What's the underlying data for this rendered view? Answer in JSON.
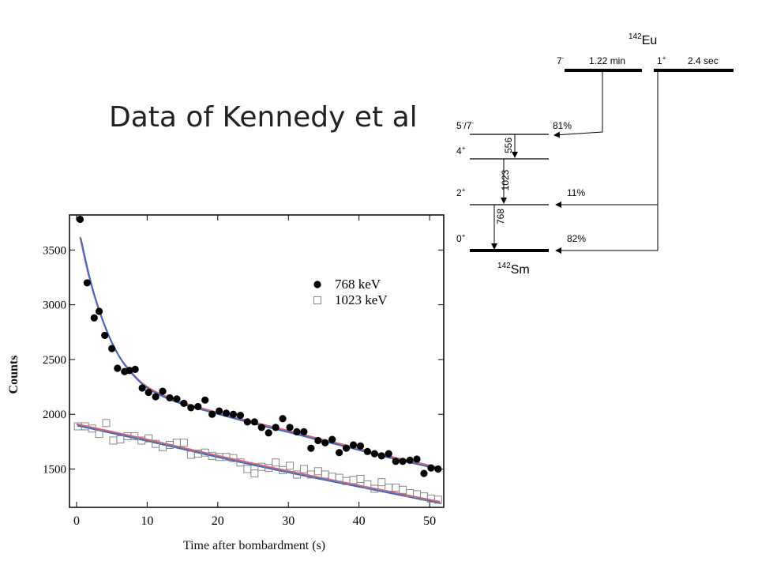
{
  "slide": {
    "title": "Data of Kennedy et al"
  },
  "chart_data": {
    "type": "scatter",
    "title": "",
    "xlabel": "Time after bombardment (s)",
    "ylabel": "Counts",
    "xlim": [
      -1,
      52
    ],
    "ylim": [
      1150,
      3820
    ],
    "x_ticks": [
      0,
      10,
      20,
      30,
      40,
      50
    ],
    "y_ticks": [
      1500,
      2000,
      2500,
      3000,
      3500
    ],
    "grid": false,
    "legend": "top-right",
    "series": [
      {
        "name": "768 keV",
        "marker": "filled-circle",
        "color": "#000000",
        "points": [
          [
            0.5,
            3780
          ],
          [
            1.5,
            3200
          ],
          [
            2.5,
            2880
          ],
          [
            3.2,
            2940
          ],
          [
            4.0,
            2720
          ],
          [
            5.0,
            2600
          ],
          [
            5.8,
            2420
          ],
          [
            6.8,
            2390
          ],
          [
            7.5,
            2400
          ],
          [
            8.3,
            2410
          ],
          [
            9.3,
            2240
          ],
          [
            10.2,
            2200
          ],
          [
            11.2,
            2160
          ],
          [
            12.2,
            2210
          ],
          [
            13.2,
            2150
          ],
          [
            14.2,
            2140
          ],
          [
            15.2,
            2100
          ],
          [
            16.2,
            2060
          ],
          [
            17.2,
            2070
          ],
          [
            18.2,
            2130
          ],
          [
            19.2,
            2000
          ],
          [
            20.2,
            2030
          ],
          [
            21.2,
            2010
          ],
          [
            22.2,
            2000
          ],
          [
            23.2,
            1990
          ],
          [
            24.2,
            1930
          ],
          [
            25.2,
            1930
          ],
          [
            26.2,
            1880
          ],
          [
            27.2,
            1830
          ],
          [
            28.2,
            1880
          ],
          [
            29.2,
            1960
          ],
          [
            30.2,
            1880
          ],
          [
            31.2,
            1840
          ],
          [
            32.2,
            1840
          ],
          [
            33.2,
            1690
          ],
          [
            34.2,
            1760
          ],
          [
            35.2,
            1740
          ],
          [
            36.2,
            1770
          ],
          [
            37.2,
            1650
          ],
          [
            38.2,
            1690
          ],
          [
            39.2,
            1720
          ],
          [
            40.2,
            1710
          ],
          [
            41.2,
            1660
          ],
          [
            42.2,
            1640
          ],
          [
            43.2,
            1620
          ],
          [
            44.2,
            1640
          ],
          [
            45.2,
            1570
          ],
          [
            46.2,
            1570
          ],
          [
            47.2,
            1580
          ],
          [
            48.2,
            1590
          ],
          [
            49.2,
            1460
          ],
          [
            50.2,
            1510
          ],
          [
            51.2,
            1500
          ]
        ]
      },
      {
        "name": "1023 keV",
        "marker": "open-square",
        "color": "#888888",
        "points": [
          [
            0.2,
            1890
          ],
          [
            1.2,
            1890
          ],
          [
            2.2,
            1870
          ],
          [
            3.2,
            1820
          ],
          [
            4.2,
            1920
          ],
          [
            5.2,
            1760
          ],
          [
            6.2,
            1770
          ],
          [
            7.2,
            1800
          ],
          [
            8.2,
            1800
          ],
          [
            9.2,
            1760
          ],
          [
            10.2,
            1780
          ],
          [
            11.2,
            1730
          ],
          [
            12.2,
            1700
          ],
          [
            13.2,
            1720
          ],
          [
            14.2,
            1740
          ],
          [
            15.2,
            1740
          ],
          [
            16.2,
            1630
          ],
          [
            17.2,
            1640
          ],
          [
            18.2,
            1650
          ],
          [
            19.2,
            1620
          ],
          [
            20.2,
            1610
          ],
          [
            21.2,
            1610
          ],
          [
            22.2,
            1600
          ],
          [
            23.2,
            1560
          ],
          [
            24.2,
            1500
          ],
          [
            25.2,
            1460
          ],
          [
            26.2,
            1520
          ],
          [
            27.2,
            1510
          ],
          [
            28.2,
            1560
          ],
          [
            29.2,
            1490
          ],
          [
            30.2,
            1530
          ],
          [
            31.2,
            1450
          ],
          [
            32.2,
            1500
          ],
          [
            33.2,
            1450
          ],
          [
            34.2,
            1480
          ],
          [
            35.2,
            1450
          ],
          [
            36.2,
            1430
          ],
          [
            37.2,
            1420
          ],
          [
            38.2,
            1390
          ],
          [
            39.2,
            1400
          ],
          [
            40.2,
            1410
          ],
          [
            41.2,
            1360
          ],
          [
            42.2,
            1320
          ],
          [
            43.2,
            1380
          ],
          [
            44.2,
            1330
          ],
          [
            45.2,
            1330
          ],
          [
            46.2,
            1310
          ],
          [
            47.2,
            1280
          ],
          [
            48.2,
            1270
          ],
          [
            49.2,
            1250
          ],
          [
            50.2,
            1230
          ],
          [
            51.2,
            1220
          ]
        ]
      }
    ],
    "fit_curves": [
      {
        "series": "768 keV",
        "color_a": "#e06060",
        "color_b": "#2f68d8",
        "points": [
          [
            0.5,
            3620
          ],
          [
            2,
            3180
          ],
          [
            4,
            2790
          ],
          [
            6,
            2520
          ],
          [
            8,
            2360
          ],
          [
            10,
            2240
          ],
          [
            14,
            2120
          ],
          [
            18,
            2050
          ],
          [
            22,
            1980
          ],
          [
            26,
            1910
          ],
          [
            30,
            1850
          ],
          [
            34,
            1780
          ],
          [
            38,
            1720
          ],
          [
            42,
            1650
          ],
          [
            46,
            1590
          ],
          [
            51.5,
            1510
          ]
        ]
      },
      {
        "series": "1023 keV",
        "color_a": "#e06060",
        "color_b": "#2f68d8",
        "points": [
          [
            0,
            1910
          ],
          [
            10,
            1770
          ],
          [
            20,
            1620
          ],
          [
            30,
            1480
          ],
          [
            40,
            1350
          ],
          [
            51.5,
            1200
          ]
        ]
      }
    ]
  },
  "level_scheme": {
    "parent": {
      "nucleus_mass": "142",
      "nucleus_symbol": "Eu"
    },
    "parent_states": [
      {
        "spin": "7",
        "parity": "-",
        "halflife": "1.22 min"
      },
      {
        "spin": "1",
        "parity": "+",
        "halflife": "2.4 sec"
      }
    ],
    "daughter": {
      "nucleus_mass": "142",
      "nucleus_symbol": "Sm"
    },
    "daughter_levels": [
      {
        "spin_a": "5",
        "parity_a": "-",
        "sep": "/",
        "spin_b": "7",
        "parity_b": "-",
        "branch": "81%"
      },
      {
        "spin_a": "4",
        "parity_a": "+",
        "branch": ""
      },
      {
        "spin_a": "2",
        "parity_a": "+",
        "branch": "11%"
      },
      {
        "spin_a": "0",
        "parity_a": "+",
        "branch": "82%"
      }
    ],
    "gammas": [
      {
        "energy": "556"
      },
      {
        "energy": "1023"
      },
      {
        "energy": "768"
      }
    ]
  }
}
